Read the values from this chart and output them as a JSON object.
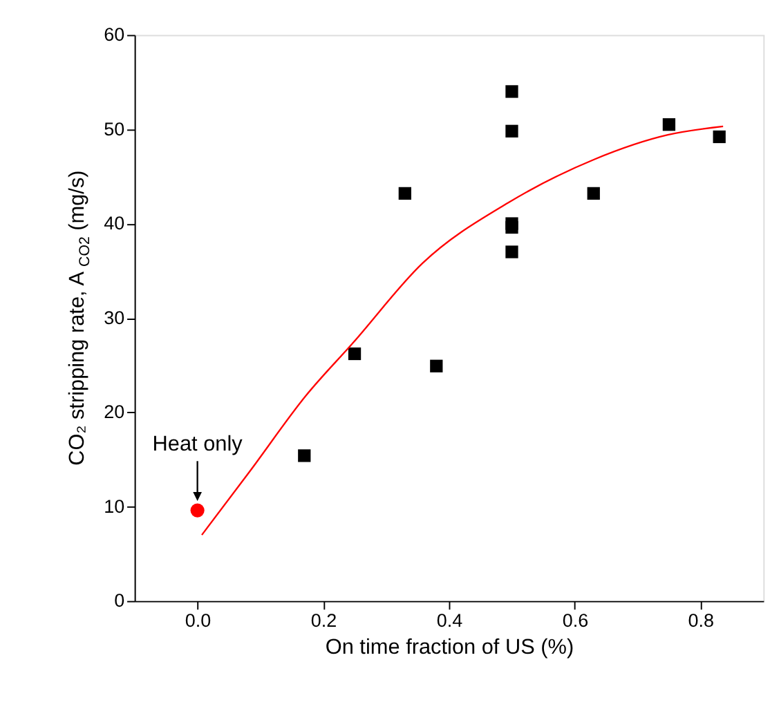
{
  "chart_data": {
    "type": "scatter",
    "xlabel": "On time fraction of US (%)",
    "ylabel": "CO₂ stripping rate, A$_{CO2}$ (mg/s)",
    "xlim": [
      -0.1,
      0.9
    ],
    "ylim": [
      0,
      60
    ],
    "xticks": [
      {
        "value": 0,
        "label": "0.0"
      },
      0.2,
      0.4,
      0.6,
      0.8
    ],
    "yticks": [
      0,
      10,
      20,
      30,
      40,
      50,
      60
    ],
    "grid": false,
    "series": [
      {
        "marker": "square",
        "color": "#000000",
        "x": [
          0.17,
          0.25,
          0.33,
          0.38,
          0.5,
          0.5,
          0.5,
          0.5,
          0.5,
          0.63,
          0.75,
          0.83
        ],
        "values": [
          15.4,
          26.2,
          43.2,
          24.9,
          54,
          49.8,
          40,
          39.6,
          37,
          43.2,
          50.5,
          49.2
        ]
      },
      {
        "marker": "circle",
        "color": "#ff0000",
        "x": [
          0
        ],
        "values": [
          9.6
        ]
      },
      {
        "type": "line",
        "marker": "none",
        "line_style": "solid",
        "color": "#ff0000",
        "x": [
          0.007,
          0.084,
          0.173,
          0.248,
          0.358,
          0.494,
          0.631,
          0.748,
          0.836
        ],
        "values": [
          7.0,
          13.8,
          21.8,
          27.4,
          35.8,
          42.2,
          46.8,
          49.4,
          50.3
        ]
      }
    ],
    "annotations": [
      {
        "text": "Heat only",
        "x": 0,
        "y": 9.6
      }
    ]
  }
}
